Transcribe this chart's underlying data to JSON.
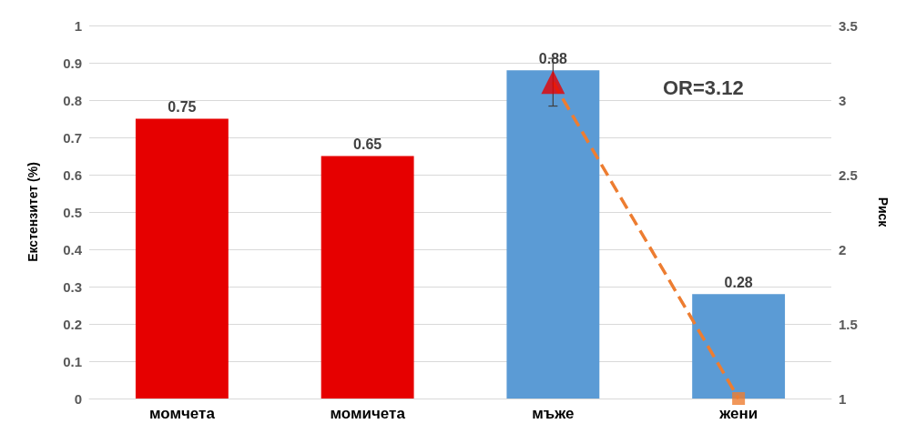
{
  "chart_data": {
    "type": "bar",
    "categories": [
      "момчета",
      "момичета",
      "мъже",
      "жени"
    ],
    "ylabel": "Екстензитет (%)",
    "y2label": "Риск",
    "ylim": [
      0,
      1
    ],
    "yticks": [
      0,
      0.1,
      0.2,
      0.3,
      0.4,
      0.5,
      0.6,
      0.7,
      0.8,
      0.9,
      1
    ],
    "y2lim": [
      1,
      3.5
    ],
    "y2ticks": [
      1,
      1.5,
      2,
      2.5,
      3,
      3.5
    ],
    "grid": "y",
    "annotations": [
      "OR=3.12"
    ],
    "series": [
      {
        "colors": [
          "#e60000",
          "#e60000",
          "#5b9bd5",
          "#5b9bd5"
        ],
        "values": [
          0.75,
          0.65,
          0.88,
          0.28
        ],
        "value_labels": [
          "0.75",
          "0.65",
          "0.88",
          "0.28"
        ]
      },
      {
        "type": "line",
        "axis": "y2",
        "color": "#ed7d31",
        "line_style": "dashed",
        "marker": "none",
        "values": [
          null,
          null,
          3.12,
          1
        ]
      },
      {
        "type": "scatter",
        "axis": "y2",
        "color": "#e60000",
        "marker": "triangle",
        "values": [
          null,
          null,
          3.12,
          null
        ],
        "errors": [
          null,
          null,
          [
            2.96,
            3.28
          ],
          null
        ]
      },
      {
        "type": "scatter",
        "axis": "y2",
        "color": "#ed7d31",
        "marker": "square",
        "values": [
          null,
          null,
          null,
          1
        ]
      }
    ]
  }
}
